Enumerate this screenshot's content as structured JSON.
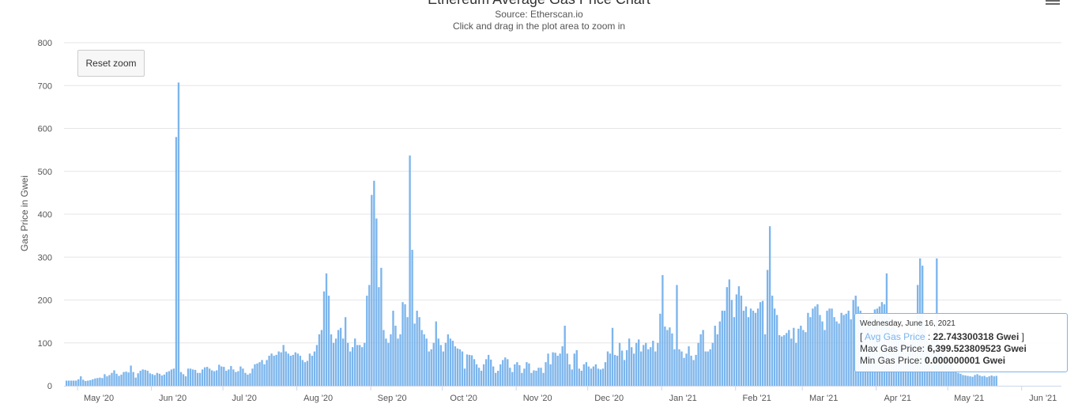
{
  "header": {
    "title": "Ethereum Average Gas Price Chart",
    "subtitle_source": "Source: Etherscan.io",
    "subtitle_hint": "Click and drag in the plot area to zoom in"
  },
  "controls": {
    "reset_zoom_label": "Reset zoom"
  },
  "tooltip": {
    "date": "Wednesday, June 16, 2021",
    "avg_open": "[ ",
    "avg_series": "Avg Gas Price",
    "avg_sep": " : ",
    "avg_value": "22.743300318 Gwei",
    "avg_close": " ]",
    "max_label": "Max Gas Price: ",
    "max_value": "6,399.523809523 Gwei",
    "min_label": "Min Gas Price: ",
    "min_value": "0.000000001 Gwei"
  },
  "colors": {
    "bar": "#7cb5ec",
    "grid": "#e6e6e6",
    "axis": "#ccd6eb"
  },
  "chart_data": {
    "type": "bar",
    "ylabel": "Gas Price in Gwei",
    "ylim": [
      0,
      800
    ],
    "yticks": [
      0,
      100,
      200,
      300,
      400,
      500,
      600,
      700,
      800
    ],
    "x_start": "2020-04-26",
    "x_end": "2021-06-16",
    "xticks": [
      {
        "label": "May '20",
        "date": "2020-05-01"
      },
      {
        "label": "Jun '20",
        "date": "2020-06-01"
      },
      {
        "label": "Jul '20",
        "date": "2020-07-01"
      },
      {
        "label": "Aug '20",
        "date": "2020-08-01"
      },
      {
        "label": "Sep '20",
        "date": "2020-09-01"
      },
      {
        "label": "Oct '20",
        "date": "2020-10-01"
      },
      {
        "label": "Nov '20",
        "date": "2020-11-01"
      },
      {
        "label": "Dec '20",
        "date": "2020-12-01"
      },
      {
        "label": "Jan '21",
        "date": "2021-01-01"
      },
      {
        "label": "Feb '21",
        "date": "2021-02-01"
      },
      {
        "label": "Mar '21",
        "date": "2021-03-01"
      },
      {
        "label": "Apr '21",
        "date": "2021-04-01"
      },
      {
        "label": "May '21",
        "date": "2021-05-01"
      },
      {
        "label": "Jun '21",
        "date": "2021-06-01"
      }
    ],
    "values": [
      12,
      12,
      12,
      12,
      12,
      15,
      22,
      14,
      11,
      12,
      13,
      15,
      17,
      18,
      19,
      18,
      27,
      22,
      25,
      30,
      36,
      28,
      23,
      26,
      32,
      33,
      31,
      47,
      32,
      19,
      29,
      35,
      38,
      37,
      35,
      29,
      27,
      25,
      30,
      28,
      24,
      26,
      32,
      34,
      38,
      40,
      580,
      707,
      32,
      27,
      22,
      40,
      40,
      38,
      37,
      30,
      30,
      38,
      43,
      44,
      40,
      36,
      34,
      36,
      49,
      45,
      44,
      35,
      38,
      46,
      38,
      32,
      34,
      45,
      40,
      30,
      26,
      29,
      40,
      50,
      52,
      55,
      60,
      50,
      60,
      70,
      75,
      70,
      72,
      80,
      78,
      95,
      80,
      75,
      70,
      72,
      78,
      75,
      70,
      60,
      55,
      58,
      75,
      70,
      80,
      95,
      120,
      130,
      220,
      262,
      210,
      120,
      100,
      110,
      130,
      135,
      110,
      160,
      100,
      80,
      90,
      110,
      95,
      95,
      90,
      100,
      210,
      235,
      445,
      478,
      390,
      230,
      275,
      130,
      110,
      100,
      120,
      175,
      140,
      110,
      120,
      195,
      190,
      160,
      537,
      317,
      145,
      175,
      160,
      130,
      120,
      110,
      80,
      85,
      100,
      150,
      110,
      95,
      80,
      100,
      120,
      110,
      105,
      92,
      87,
      85,
      80,
      40,
      73,
      72,
      71,
      62,
      50,
      42,
      35,
      50,
      62,
      72,
      61,
      45,
      30,
      35,
      50,
      60,
      66,
      62,
      42,
      32,
      50,
      55,
      48,
      30,
      40,
      55,
      52,
      30,
      36,
      35,
      42,
      42,
      30,
      55,
      75,
      50,
      78,
      77,
      70,
      75,
      92,
      140,
      75,
      50,
      38,
      75,
      83,
      40,
      35,
      50,
      55,
      45,
      40,
      45,
      50,
      40,
      38,
      40,
      55,
      80,
      75,
      135,
      72,
      70,
      100,
      82,
      60,
      83,
      110,
      90,
      75,
      100,
      108,
      80,
      95,
      100,
      85,
      90,
      105,
      80,
      100,
      168,
      258,
      138,
      130,
      136,
      122,
      85,
      235,
      85,
      80,
      65,
      75,
      92,
      70,
      60,
      72,
      100,
      120,
      130,
      80,
      80,
      85,
      100,
      140,
      120,
      150,
      175,
      175,
      230,
      248,
      200,
      160,
      213,
      232,
      210,
      175,
      185,
      160,
      180,
      175,
      170,
      180,
      195,
      198,
      120,
      270,
      372,
      210,
      180,
      165,
      118,
      115,
      118,
      123,
      130,
      110,
      135,
      100,
      133,
      140,
      130,
      125,
      170,
      160,
      180,
      185,
      190,
      165,
      150,
      130,
      175,
      180,
      180,
      160,
      150,
      145,
      170,
      165,
      168,
      175,
      155,
      200,
      210,
      185,
      175,
      165,
      150,
      155,
      160,
      165,
      178,
      180,
      185,
      195,
      190,
      262,
      160,
      150,
      140,
      130,
      115,
      110,
      105,
      100,
      98,
      105,
      110,
      115,
      235,
      297,
      280,
      140,
      110,
      100,
      115,
      120,
      297,
      100,
      90,
      80,
      70,
      60,
      50,
      40,
      35,
      30,
      28,
      25,
      24,
      23,
      22,
      21,
      25,
      27,
      24,
      22,
      23,
      20,
      22,
      24,
      22,
      23
    ]
  }
}
